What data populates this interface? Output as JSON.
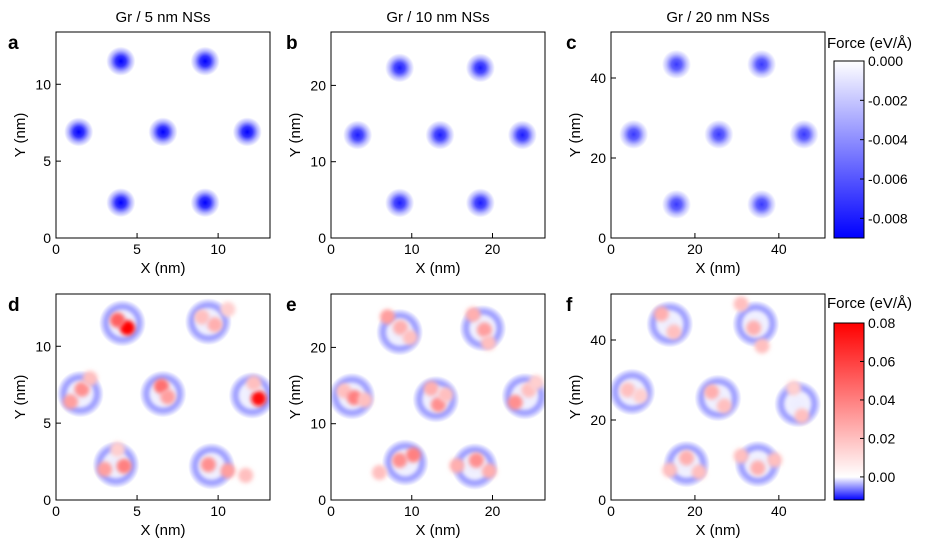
{
  "chart_data": [
    {
      "type": "heatmap",
      "panel": "a",
      "title": "Gr / 5 nm NSs",
      "xlabel": "X (nm)",
      "ylabel": "Y (nm)",
      "xlim": [
        0,
        13.2
      ],
      "ylim": [
        0,
        13.4
      ],
      "xticks": [
        0,
        5,
        10
      ],
      "yticks": [
        0,
        5,
        10
      ],
      "colorscale": "cb_top",
      "spots": [
        {
          "x": 4.0,
          "y": 11.5,
          "v": -0.009
        },
        {
          "x": 9.2,
          "y": 11.5,
          "v": -0.009
        },
        {
          "x": 1.4,
          "y": 6.9,
          "v": -0.009
        },
        {
          "x": 6.6,
          "y": 6.9,
          "v": -0.009
        },
        {
          "x": 11.8,
          "y": 6.9,
          "v": -0.009
        },
        {
          "x": 4.0,
          "y": 2.3,
          "v": -0.009
        },
        {
          "x": 9.2,
          "y": 2.3,
          "v": -0.009
        }
      ]
    },
    {
      "type": "heatmap",
      "panel": "b",
      "title": "Gr / 10 nm NSs",
      "xlabel": "X (nm)",
      "ylabel": "Y (nm)",
      "xlim": [
        0,
        26.5
      ],
      "ylim": [
        0,
        27
      ],
      "xticks": [
        0,
        10,
        20
      ],
      "yticks": [
        0,
        10,
        20
      ],
      "colorscale": "cb_top",
      "spots": [
        {
          "x": 8.5,
          "y": 22.3,
          "v": -0.008
        },
        {
          "x": 18.5,
          "y": 22.3,
          "v": -0.008
        },
        {
          "x": 3.3,
          "y": 13.5,
          "v": -0.008
        },
        {
          "x": 13.5,
          "y": 13.5,
          "v": -0.008
        },
        {
          "x": 23.7,
          "y": 13.5,
          "v": -0.008
        },
        {
          "x": 8.5,
          "y": 4.6,
          "v": -0.008
        },
        {
          "x": 18.5,
          "y": 4.6,
          "v": -0.008
        }
      ]
    },
    {
      "type": "heatmap",
      "panel": "c",
      "title": "Gr / 20 nm NSs",
      "xlabel": "X (nm)",
      "ylabel": "Y (nm)",
      "xlim": [
        0,
        51
      ],
      "ylim": [
        0,
        51.5
      ],
      "xticks": [
        0,
        20,
        40
      ],
      "yticks": [
        0,
        20,
        40
      ],
      "colorscale": "cb_top",
      "spots": [
        {
          "x": 15.6,
          "y": 43.4,
          "v": -0.007
        },
        {
          "x": 35.9,
          "y": 43.4,
          "v": -0.007
        },
        {
          "x": 5.4,
          "y": 25.9,
          "v": -0.007
        },
        {
          "x": 25.7,
          "y": 25.9,
          "v": -0.007
        },
        {
          "x": 46.0,
          "y": 25.9,
          "v": -0.007
        },
        {
          "x": 15.6,
          "y": 8.4,
          "v": -0.007
        },
        {
          "x": 35.9,
          "y": 8.4,
          "v": -0.007
        }
      ]
    },
    {
      "type": "heatmap",
      "panel": "d",
      "title": "",
      "xlabel": "X (nm)",
      "ylabel": "Y (nm)",
      "xlim": [
        0,
        13.2
      ],
      "ylim": [
        0,
        13.4
      ],
      "xticks": [
        0,
        5,
        10
      ],
      "yticks": [
        0,
        5,
        10
      ],
      "colorscale": "cb_bottom",
      "rings": [
        {
          "x": 4.1,
          "y": 11.5
        },
        {
          "x": 9.4,
          "y": 11.6
        },
        {
          "x": 1.5,
          "y": 6.9
        },
        {
          "x": 6.6,
          "y": 6.9
        },
        {
          "x": 12.1,
          "y": 6.8
        },
        {
          "x": 3.7,
          "y": 2.3
        },
        {
          "x": 9.6,
          "y": 2.2
        }
      ],
      "hot": [
        {
          "x": 4.4,
          "y": 11.2,
          "v": 0.08
        },
        {
          "x": 3.8,
          "y": 11.7,
          "v": 0.05
        },
        {
          "x": 9.0,
          "y": 11.9,
          "v": 0.02
        },
        {
          "x": 9.8,
          "y": 11.4,
          "v": 0.025
        },
        {
          "x": 10.6,
          "y": 12.4,
          "v": 0.015
        },
        {
          "x": 0.9,
          "y": 6.4,
          "v": 0.03
        },
        {
          "x": 1.6,
          "y": 7.2,
          "v": 0.035
        },
        {
          "x": 2.1,
          "y": 7.9,
          "v": 0.02
        },
        {
          "x": 6.5,
          "y": 7.4,
          "v": 0.045
        },
        {
          "x": 6.9,
          "y": 6.7,
          "v": 0.03
        },
        {
          "x": 12.5,
          "y": 6.6,
          "v": 0.075
        },
        {
          "x": 12.2,
          "y": 7.6,
          "v": 0.02
        },
        {
          "x": 3.0,
          "y": 2.0,
          "v": 0.03
        },
        {
          "x": 4.2,
          "y": 2.2,
          "v": 0.04
        },
        {
          "x": 3.8,
          "y": 3.3,
          "v": 0.015
        },
        {
          "x": 9.4,
          "y": 2.3,
          "v": 0.035
        },
        {
          "x": 10.6,
          "y": 1.9,
          "v": 0.03
        },
        {
          "x": 11.7,
          "y": 1.6,
          "v": 0.02
        }
      ]
    },
    {
      "type": "heatmap",
      "panel": "e",
      "title": "",
      "xlabel": "X (nm)",
      "ylabel": "Y (nm)",
      "xlim": [
        0,
        26.5
      ],
      "ylim": [
        0,
        27
      ],
      "xticks": [
        0,
        10,
        20
      ],
      "yticks": [
        0,
        10,
        20
      ],
      "colorscale": "cb_bottom",
      "rings": [
        {
          "x": 8.5,
          "y": 22.0
        },
        {
          "x": 18.8,
          "y": 22.5
        },
        {
          "x": 2.6,
          "y": 13.6
        },
        {
          "x": 13.0,
          "y": 13.2
        },
        {
          "x": 24.0,
          "y": 13.6
        },
        {
          "x": 9.2,
          "y": 4.9
        },
        {
          "x": 17.8,
          "y": 4.4
        }
      ],
      "hot": [
        {
          "x": 7.0,
          "y": 24.0,
          "v": 0.03
        },
        {
          "x": 8.6,
          "y": 22.6,
          "v": 0.025
        },
        {
          "x": 9.8,
          "y": 21.3,
          "v": 0.02
        },
        {
          "x": 17.6,
          "y": 24.3,
          "v": 0.025
        },
        {
          "x": 19.0,
          "y": 22.3,
          "v": 0.03
        },
        {
          "x": 19.5,
          "y": 20.6,
          "v": 0.02
        },
        {
          "x": 1.6,
          "y": 14.3,
          "v": 0.02
        },
        {
          "x": 2.9,
          "y": 13.4,
          "v": 0.04
        },
        {
          "x": 4.2,
          "y": 13.1,
          "v": 0.02
        },
        {
          "x": 12.4,
          "y": 14.6,
          "v": 0.025
        },
        {
          "x": 13.3,
          "y": 12.5,
          "v": 0.035
        },
        {
          "x": 14.2,
          "y": 13.8,
          "v": 0.02
        },
        {
          "x": 22.8,
          "y": 12.8,
          "v": 0.035
        },
        {
          "x": 24.5,
          "y": 14.4,
          "v": 0.02
        },
        {
          "x": 25.4,
          "y": 15.4,
          "v": 0.015
        },
        {
          "x": 6.0,
          "y": 3.6,
          "v": 0.02
        },
        {
          "x": 8.5,
          "y": 5.2,
          "v": 0.035
        },
        {
          "x": 10.2,
          "y": 5.9,
          "v": 0.04
        },
        {
          "x": 15.6,
          "y": 4.5,
          "v": 0.025
        },
        {
          "x": 18.0,
          "y": 5.2,
          "v": 0.035
        },
        {
          "x": 19.6,
          "y": 3.8,
          "v": 0.025
        }
      ]
    },
    {
      "type": "heatmap",
      "panel": "f",
      "title": "",
      "xlabel": "X (nm)",
      "ylabel": "Y (nm)",
      "xlim": [
        0,
        51
      ],
      "ylim": [
        0,
        51.5
      ],
      "xticks": [
        0,
        20,
        40
      ],
      "yticks": [
        0,
        20,
        40
      ],
      "colorscale": "cb_bottom",
      "rings": [
        {
          "x": 14.0,
          "y": 44.0
        },
        {
          "x": 34.5,
          "y": 44.0
        },
        {
          "x": 5.0,
          "y": 27.0
        },
        {
          "x": 25.5,
          "y": 25.5
        },
        {
          "x": 44.5,
          "y": 24.0
        },
        {
          "x": 18.0,
          "y": 9.0
        },
        {
          "x": 35.0,
          "y": 9.0
        }
      ],
      "hot": [
        {
          "x": 12.0,
          "y": 46.5,
          "v": 0.025
        },
        {
          "x": 15.0,
          "y": 42.0,
          "v": 0.02
        },
        {
          "x": 31.0,
          "y": 49.0,
          "v": 0.02
        },
        {
          "x": 34.0,
          "y": 43.0,
          "v": 0.025
        },
        {
          "x": 36.0,
          "y": 38.5,
          "v": 0.02
        },
        {
          "x": 4.0,
          "y": 27.5,
          "v": 0.02
        },
        {
          "x": 7.0,
          "y": 26.0,
          "v": 0.015
        },
        {
          "x": 24.0,
          "y": 27.0,
          "v": 0.025
        },
        {
          "x": 27.0,
          "y": 23.5,
          "v": 0.02
        },
        {
          "x": 43.5,
          "y": 28.0,
          "v": 0.015
        },
        {
          "x": 45.5,
          "y": 21.0,
          "v": 0.02
        },
        {
          "x": 14.0,
          "y": 7.5,
          "v": 0.02
        },
        {
          "x": 18.0,
          "y": 10.5,
          "v": 0.025
        },
        {
          "x": 21.0,
          "y": 7.0,
          "v": 0.02
        },
        {
          "x": 31.0,
          "y": 11.0,
          "v": 0.02
        },
        {
          "x": 35.0,
          "y": 8.0,
          "v": 0.025
        },
        {
          "x": 39.0,
          "y": 10.0,
          "v": 0.02
        }
      ]
    }
  ],
  "colorbars": {
    "cb_top": {
      "title": "Force (eV/Å)",
      "range": [
        -0.009,
        0.0
      ],
      "ticks": [
        "0.000",
        "-0.002",
        "-0.004",
        "-0.006",
        "-0.008"
      ],
      "tick_values": [
        0.0,
        -0.002,
        -0.004,
        -0.006,
        -0.008
      ],
      "colors": {
        "low": "#0000ff",
        "high": "#ffffff"
      }
    },
    "cb_bottom": {
      "title": "Force (eV/Å)",
      "range": [
        -0.012,
        0.08
      ],
      "ticks": [
        "0.08",
        "0.06",
        "0.04",
        "0.02",
        "0.00"
      ],
      "tick_values": [
        0.08,
        0.06,
        0.04,
        0.02,
        0.0
      ],
      "colors": {
        "low": "#0000ff",
        "zero": "#ffffff",
        "high": "#ff0000"
      }
    }
  }
}
